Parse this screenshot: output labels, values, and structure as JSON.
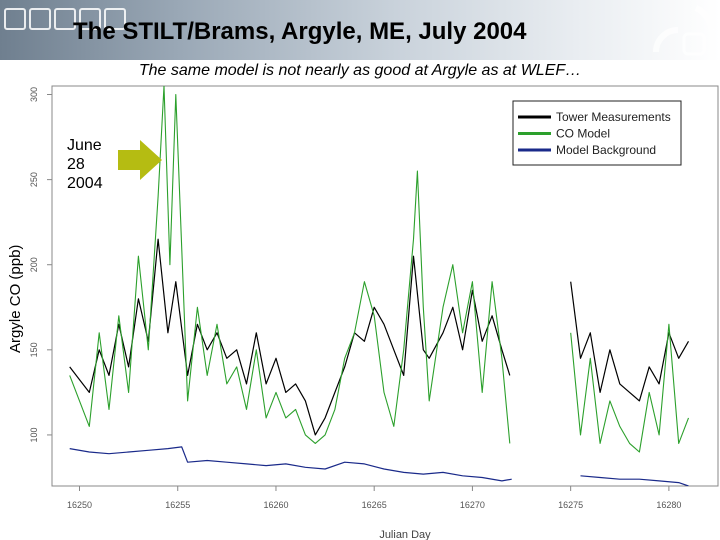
{
  "header": {
    "title": "The STILT/Brams, Argyle, ME, July 2004",
    "subtitle": "The same model is not nearly as good at Argyle as at WLEF…"
  },
  "colors": {
    "tower": "#000000",
    "model": "#2ca02c",
    "background": "#1a2a8a",
    "arrow": "#b5bc12"
  },
  "chart_data": {
    "type": "line",
    "title": "",
    "xlabel": "Julian Day",
    "ylabel": "Argyle CO (ppb)",
    "xlim": [
      16248.6,
      16282.5
    ],
    "ylim": [
      70,
      305
    ],
    "xticks": [
      16250,
      16255,
      16260,
      16265,
      16270,
      16275,
      16280
    ],
    "xtick_labels": [
      "16250",
      "16255",
      "16260",
      "16265",
      "16270",
      "16275",
      "16280"
    ],
    "yticks": [
      100,
      150,
      200,
      250,
      300
    ],
    "ytick_labels": [
      "100",
      "150",
      "200",
      "250",
      "300"
    ],
    "legend_position": "top-right",
    "annotation": [
      "June",
      "28",
      "2004"
    ],
    "series": [
      {
        "name": "Tower Measurements",
        "color": "#000000",
        "x": [
          16249.5,
          16250.5,
          16251.0,
          16251.5,
          16252.0,
          16252.5,
          16253.0,
          16253.5,
          16254.0,
          16254.5,
          16254.9,
          16255.5,
          16256.0,
          16256.5,
          16257.0,
          16257.5,
          16258.0,
          16258.5,
          16259.0,
          16259.5,
          16260.0,
          16260.5,
          16261.0,
          16261.5,
          16262.0,
          16262.5,
          16263.0,
          16263.5,
          16264.0,
          16264.5,
          16265.0,
          16265.5,
          16266.0,
          16266.5,
          16267.0,
          16267.5,
          16267.8,
          16268.5,
          16269.0,
          16269.5,
          16270.0,
          16270.5,
          16271.0,
          16271.5,
          16271.9,
          null,
          16275.0,
          16275.5,
          16276.0,
          16276.5,
          16277.0,
          16277.5,
          16278.0,
          16278.5,
          16279.0,
          16279.5,
          16280.0,
          16280.5,
          16281.0
        ],
        "y": [
          140,
          125,
          150,
          135,
          165,
          140,
          180,
          155,
          215,
          160,
          190,
          135,
          165,
          150,
          160,
          145,
          150,
          130,
          160,
          130,
          145,
          125,
          130,
          120,
          100,
          110,
          125,
          140,
          160,
          155,
          175,
          165,
          150,
          135,
          205,
          150,
          145,
          160,
          175,
          150,
          185,
          155,
          170,
          150,
          135,
          null,
          190,
          145,
          160,
          125,
          150,
          130,
          125,
          120,
          140,
          130,
          160,
          145,
          155
        ]
      },
      {
        "name": "CO Model",
        "color": "#2ca02c",
        "x": [
          16249.5,
          16250.5,
          16251.0,
          16251.5,
          16252.0,
          16252.5,
          16253.0,
          16253.5,
          16254.0,
          16254.3,
          16254.6,
          16254.9,
          16255.5,
          16256.0,
          16256.5,
          16257.0,
          16257.5,
          16258.0,
          16258.5,
          16259.0,
          16259.5,
          16260.0,
          16260.5,
          16261.0,
          16261.5,
          16262.0,
          16262.5,
          16263.0,
          16263.5,
          16264.0,
          16264.5,
          16265.0,
          16265.5,
          16266.0,
          16266.5,
          16267.0,
          16267.2,
          16267.5,
          16267.8,
          16268.5,
          16269.0,
          16269.5,
          16270.0,
          16270.5,
          16271.0,
          16271.5,
          16271.9,
          null,
          16275.0,
          16275.5,
          16276.0,
          16276.5,
          16277.0,
          16277.5,
          16278.0,
          16278.5,
          16279.0,
          16279.5,
          16280.0,
          16280.5,
          16281.0
        ],
        "y": [
          135,
          105,
          160,
          115,
          170,
          125,
          205,
          150,
          240,
          305,
          200,
          300,
          120,
          175,
          135,
          165,
          130,
          140,
          115,
          150,
          110,
          125,
          110,
          115,
          100,
          95,
          100,
          115,
          145,
          160,
          190,
          170,
          125,
          105,
          150,
          215,
          255,
          175,
          120,
          175,
          200,
          160,
          190,
          125,
          190,
          145,
          95,
          null,
          160,
          100,
          145,
          95,
          120,
          105,
          95,
          90,
          125,
          100,
          165,
          95,
          110
        ]
      },
      {
        "name": "Model Background",
        "color": "#1a2a8a",
        "x": [
          16249.5,
          16250.5,
          16251.5,
          16252.5,
          16253.5,
          16254.5,
          16255.2,
          16255.5,
          16256.5,
          16257.5,
          16258.5,
          16259.5,
          16260.5,
          16261.5,
          16262.5,
          16263.5,
          16264.5,
          16265.5,
          16266.5,
          16267.5,
          16268.5,
          16269.5,
          16270.5,
          16271.5,
          16272.0,
          null,
          16275.5,
          16276.5,
          16277.5,
          16278.5,
          16279.5,
          16280.5,
          16281.0
        ],
        "y": [
          92,
          90,
          89,
          90,
          91,
          92,
          93,
          84,
          85,
          84,
          83,
          82,
          83,
          81,
          80,
          84,
          83,
          80,
          78,
          77,
          78,
          76,
          75,
          73,
          74,
          null,
          76,
          75,
          74,
          74,
          73,
          72,
          70
        ]
      }
    ]
  }
}
